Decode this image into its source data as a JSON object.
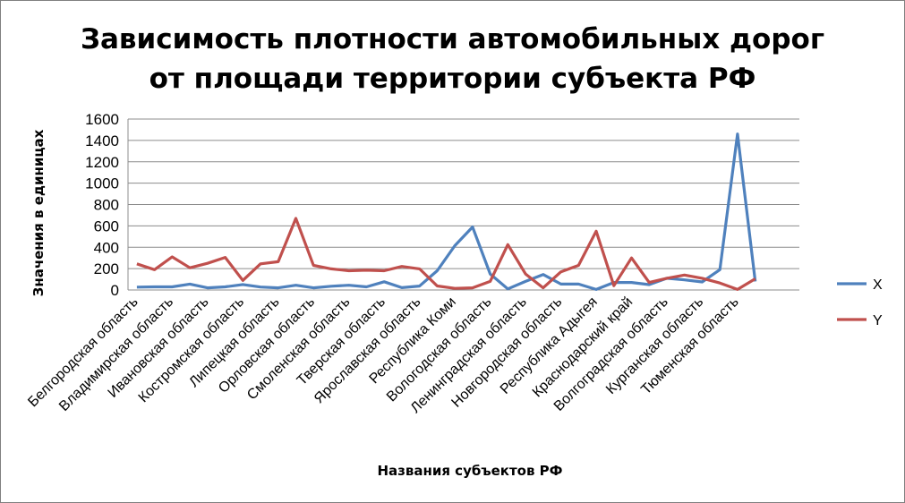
{
  "chart_data": {
    "type": "line",
    "title": [
      "Зависимость плотности автомобильных дорог",
      "от площади территории субъекта РФ"
    ],
    "xlabel": "Названия субъектов РФ",
    "ylabel": "Значения в единицах",
    "ylim": [
      0,
      1600
    ],
    "yticks": [
      0,
      200,
      400,
      600,
      800,
      1000,
      1200,
      1400,
      1600
    ],
    "grid": true,
    "legend_position": "right",
    "category_labels": [
      "Белгородская область",
      "Владимирская область",
      "Ивановская область",
      "Костромская область",
      "Липецкая область",
      "Орловская область",
      "Смоленская область",
      "Тверская область",
      "Ярославская область",
      "Республика Коми",
      "Вологодская область",
      "Ленинградская область",
      "Новгородская область",
      "Республика Адыгея",
      "Краснодарский край",
      "Волгоградская область",
      "Курганская область",
      "Тюменская область"
    ],
    "x_count": 38,
    "series": [
      {
        "name": "X",
        "color": "#4f81bd",
        "values": [
          27,
          29,
          29,
          55,
          20,
          29,
          51,
          28,
          20,
          44,
          20,
          35,
          44,
          29,
          77,
          22,
          37,
          180,
          415,
          590,
          150,
          10,
          80,
          145,
          55,
          55,
          5,
          70,
          70,
          50,
          110,
          95,
          75,
          190,
          1460,
          80,
          0,
          0
        ]
      },
      {
        "name": "Y",
        "color": "#c0504d",
        "values": [
          245,
          190,
          310,
          208,
          250,
          305,
          90,
          245,
          265,
          670,
          230,
          198,
          180,
          185,
          180,
          220,
          198,
          38,
          15,
          20,
          80,
          425,
          150,
          20,
          170,
          230,
          550,
          40,
          300,
          70,
          110,
          140,
          110,
          65,
          5,
          105,
          0,
          0
        ]
      }
    ]
  }
}
